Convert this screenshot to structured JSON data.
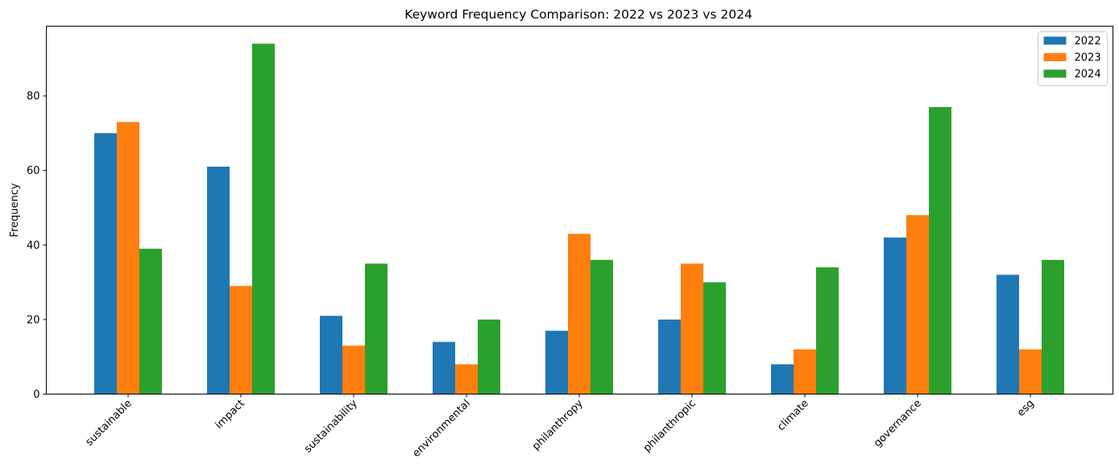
{
  "chart_data": {
    "type": "bar",
    "title": "Keyword Frequency Comparison: 2022 vs 2023 vs 2024",
    "xlabel": "",
    "ylabel": "Frequency",
    "ylim": [
      0,
      98.7
    ],
    "yticks": [
      0,
      20,
      40,
      60,
      80
    ],
    "grid": false,
    "legend_position": "top-right",
    "categories": [
      "sustainable",
      "impact",
      "sustainability",
      "environmental",
      "philanthropy",
      "philanthropic",
      "climate",
      "governance",
      "esg"
    ],
    "series": [
      {
        "name": "2022",
        "color": "#1f77b4",
        "values": [
          70,
          61,
          21,
          14,
          17,
          20,
          8,
          42,
          32
        ]
      },
      {
        "name": "2023",
        "color": "#ff7f0e",
        "values": [
          73,
          29,
          13,
          8,
          43,
          35,
          12,
          48,
          12
        ]
      },
      {
        "name": "2024",
        "color": "#2ca02c",
        "values": [
          39,
          94,
          35,
          20,
          36,
          30,
          34,
          77,
          36
        ]
      }
    ]
  }
}
